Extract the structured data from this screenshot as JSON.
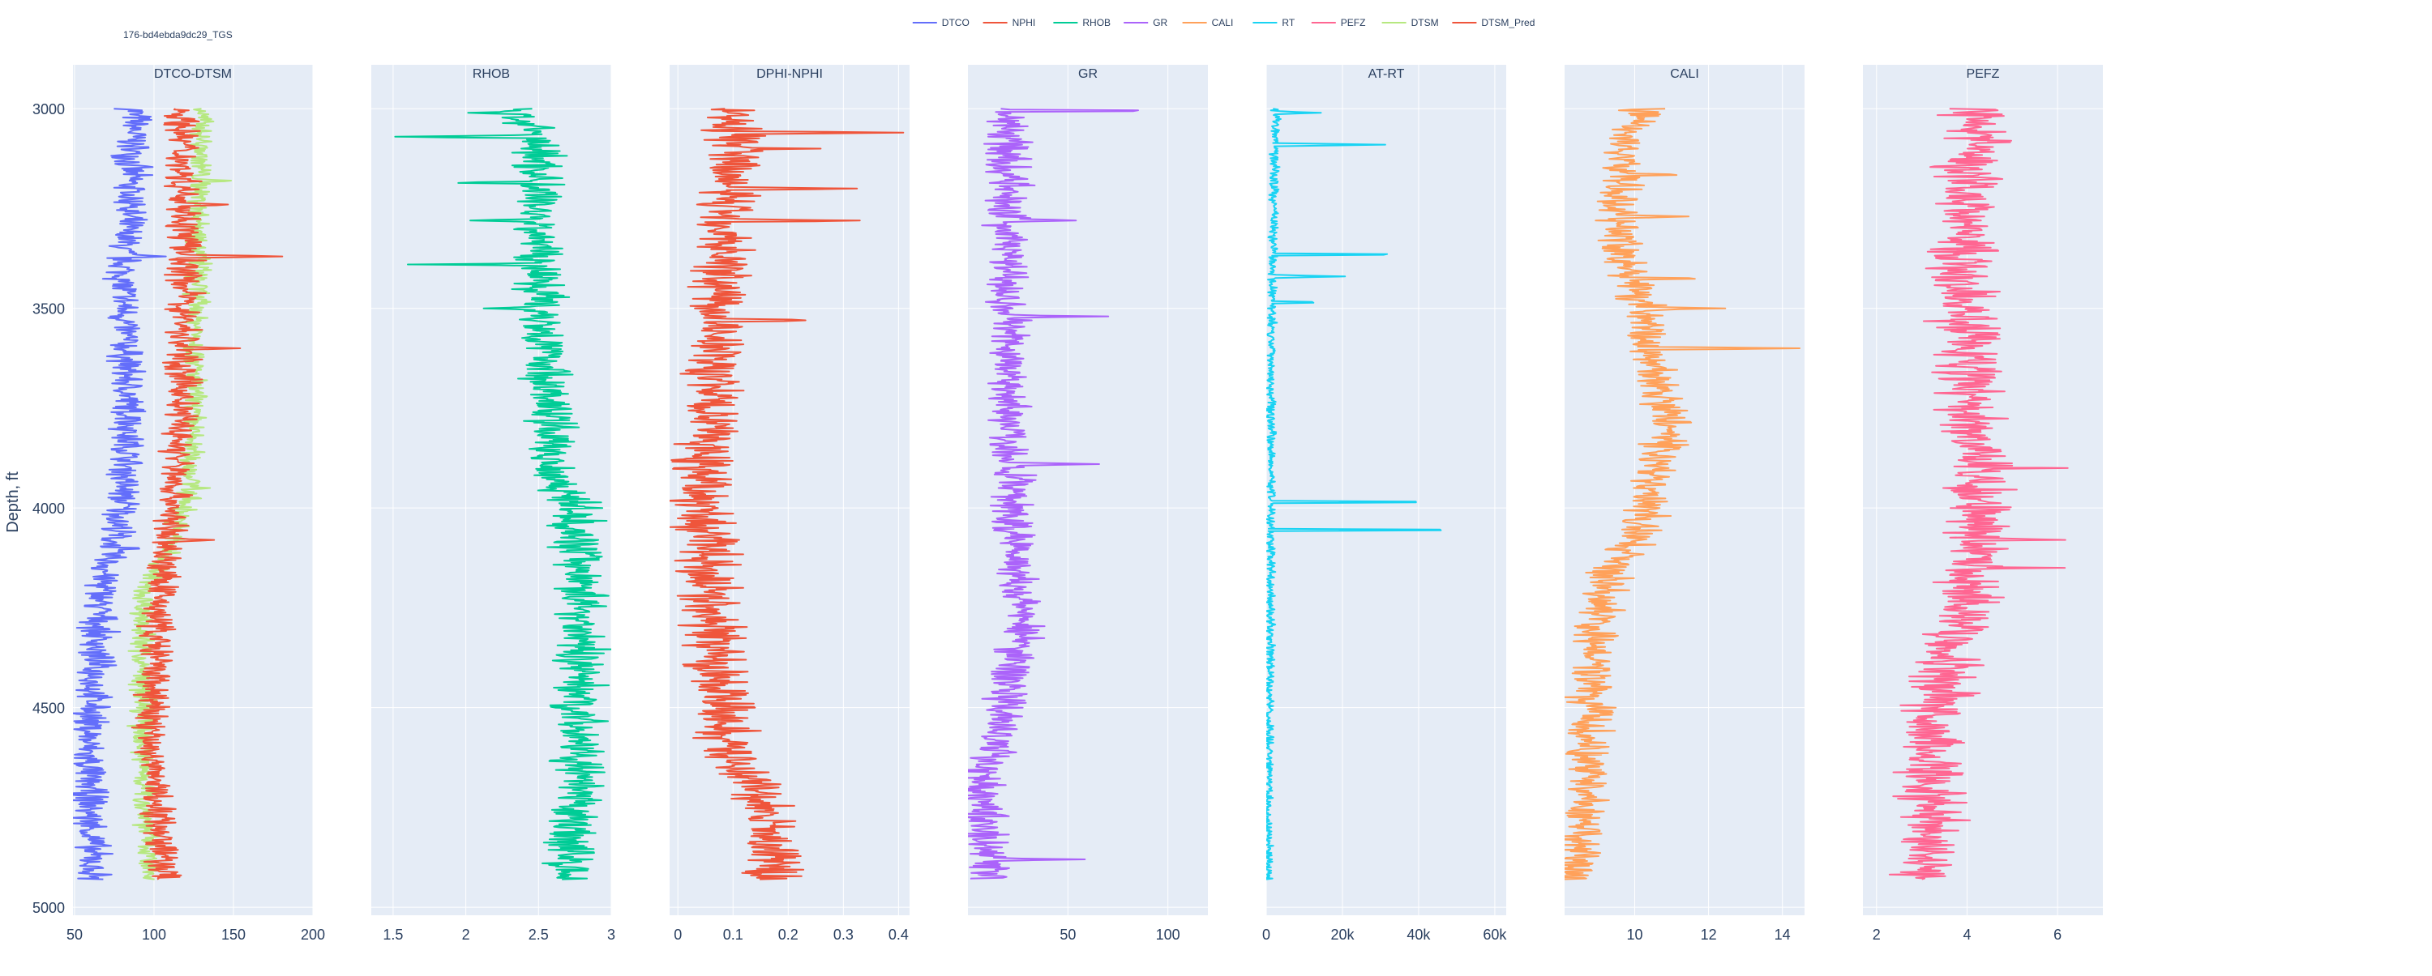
{
  "annotation": "176-bd4ebda9dc29_TGS",
  "y_axis_title": "Depth, ft",
  "colors": {
    "DTCO": "#636efa",
    "NPHI": "#EF553B",
    "RHOB": "#00cc96",
    "GR": "#ab63fa",
    "CALI": "#FFA15A",
    "RT": "#19d3f3",
    "PEFZ": "#FF6692",
    "DTSM": "#B6E880",
    "DTSM_Pred": "#EF553B",
    "plot_bg": "#E5ECF6",
    "grid": "#ffffff",
    "text": "#2a3f5f"
  },
  "legend": {
    "placement": "top-center",
    "items": [
      "DTCO",
      "NPHI",
      "RHOB",
      "GR",
      "CALI",
      "RT",
      "PEFZ",
      "DTSM",
      "DTSM_Pred"
    ]
  },
  "chart_data": {
    "type": "line",
    "depth_range": [
      3000,
      4930
    ],
    "ylim": [
      5020,
      2890
    ],
    "yticks": [
      3000,
      3500,
      4000,
      4500,
      5000
    ],
    "tracks": [
      {
        "title": "DTCO-DTSM",
        "xlim": [
          49,
          200
        ],
        "xticks": [
          50,
          100,
          150,
          200
        ],
        "xticklabels": [
          "50",
          "100",
          "150",
          "200"
        ],
        "series": [
          {
            "name": "DTCO",
            "profile": [
              [
                3000,
                88
              ],
              [
                3200,
                85
              ],
              [
                3400,
                80
              ],
              [
                3600,
                82
              ],
              [
                3800,
                84
              ],
              [
                4000,
                80
              ],
              [
                4050,
                77
              ],
              [
                4200,
                67
              ],
              [
                4400,
                63
              ],
              [
                4600,
                58
              ],
              [
                4800,
                60
              ],
              [
                4930,
                62
              ]
            ],
            "amp": 14,
            "spikes": [
              [
                3370,
                22
              ],
              [
                3240,
                14
              ],
              [
                3780,
                12
              ],
              [
                4100,
                10
              ]
            ]
          },
          {
            "name": "DTSM",
            "profile": [
              [
                3000,
                130
              ],
              [
                3400,
                128
              ],
              [
                3700,
                125
              ],
              [
                3950,
                123
              ],
              [
                4100,
                110
              ],
              [
                4200,
                94
              ],
              [
                4400,
                92
              ],
              [
                4600,
                93
              ],
              [
                4800,
                96
              ],
              [
                4930,
                97
              ]
            ],
            "amp": 10,
            "spikes": [
              [
                3180,
                14
              ],
              [
                3950,
                10
              ]
            ]
          },
          {
            "name": "DTSM_Pred",
            "profile": [
              [
                3000,
                118
              ],
              [
                3400,
                120
              ],
              [
                3700,
                118
              ],
              [
                4000,
                112
              ],
              [
                4100,
                108
              ],
              [
                4200,
                104
              ],
              [
                4600,
                97
              ],
              [
                4800,
                105
              ],
              [
                4930,
                106
              ]
            ],
            "amp": 14,
            "spikes": [
              [
                3370,
                65
              ],
              [
                3240,
                40
              ],
              [
                3600,
                30
              ],
              [
                4080,
                22
              ]
            ]
          }
        ]
      },
      {
        "title": "RHOB",
        "xlim": [
          1.35,
          3.0
        ],
        "xticks": [
          1.5,
          2,
          2.5,
          3
        ],
        "xticklabels": [
          "1.5",
          "2",
          "2.5",
          "3"
        ],
        "series": [
          {
            "name": "RHOB",
            "profile": [
              [
                3000,
                2.35
              ],
              [
                3100,
                2.5
              ],
              [
                3300,
                2.5
              ],
              [
                3600,
                2.55
              ],
              [
                3900,
                2.6
              ],
              [
                4000,
                2.75
              ],
              [
                4200,
                2.8
              ],
              [
                4600,
                2.78
              ],
              [
                4930,
                2.7
              ]
            ],
            "amp": 0.22,
            "spikes": [
              [
                3070,
                -0.95
              ],
              [
                3185,
                -0.55
              ],
              [
                3280,
                -0.45
              ],
              [
                3390,
                -0.75
              ],
              [
                3500,
                -0.35
              ],
              [
                3010,
                -0.3
              ]
            ]
          }
        ]
      },
      {
        "title": "DPHI-NPHI",
        "xlim": [
          -0.015,
          0.42
        ],
        "xticks": [
          0,
          0.1,
          0.2,
          0.3,
          0.4
        ],
        "xticklabels": [
          "0",
          "0.1",
          "0.2",
          "0.3",
          "0.4"
        ],
        "series": [
          {
            "name": "NPHI",
            "profile": [
              [
                3000,
                0.1
              ],
              [
                3300,
                0.09
              ],
              [
                3600,
                0.07
              ],
              [
                3900,
                0.05
              ],
              [
                4000,
                0.04
              ],
              [
                4200,
                0.06
              ],
              [
                4400,
                0.07
              ],
              [
                4600,
                0.09
              ],
              [
                4700,
                0.14
              ],
              [
                4850,
                0.17
              ],
              [
                4930,
                0.17
              ]
            ],
            "amp": 0.07,
            "spikes": [
              [
                3060,
                0.3
              ],
              [
                3200,
                0.2
              ],
              [
                3280,
                0.28
              ],
              [
                3530,
                0.16
              ],
              [
                3100,
                0.15
              ]
            ]
          }
        ]
      },
      {
        "title": "GR",
        "xlim": [
          0,
          120
        ],
        "xticks": [
          50,
          100
        ],
        "xticklabels": [
          "50",
          "100"
        ],
        "series": [
          {
            "name": "GR",
            "profile": [
              [
                3000,
                20
              ],
              [
                3500,
                20
              ],
              [
                4000,
                22
              ],
              [
                4300,
                28
              ],
              [
                4500,
                18
              ],
              [
                4700,
                8
              ],
              [
                4930,
                10
              ]
            ],
            "amp": 14,
            "spikes": [
              [
                3005,
                80
              ],
              [
                3520,
                55
              ],
              [
                3890,
                40
              ],
              [
                3280,
                30
              ],
              [
                4880,
                50
              ]
            ]
          }
        ]
      },
      {
        "title": "AT-RT",
        "xlim": [
          0,
          63000
        ],
        "xticks": [
          0,
          20000,
          40000,
          60000
        ],
        "xticklabels": [
          "0",
          "20k",
          "40k",
          "60k"
        ],
        "series": [
          {
            "name": "RT",
            "profile": [
              [
                3000,
                2500
              ],
              [
                3500,
                1500
              ],
              [
                4000,
                1200
              ],
              [
                4500,
                800
              ],
              [
                4930,
                400
              ]
            ],
            "amp": 1500,
            "spikes": [
              [
                4055,
                60000
              ],
              [
                3985,
                52000
              ],
              [
                3365,
                40000
              ],
              [
                3090,
                30000
              ],
              [
                3420,
                18000
              ],
              [
                3010,
                12000
              ],
              [
                3485,
                14000
              ]
            ]
          }
        ]
      },
      {
        "title": "CALI",
        "xlim": [
          8.1,
          14.6
        ],
        "xticks": [
          10,
          12,
          14
        ],
        "xticklabels": [
          "10",
          "12",
          "14"
        ],
        "series": [
          {
            "name": "CALI",
            "profile": [
              [
                3000,
                10.2
              ],
              [
                3100,
                9.7
              ],
              [
                3300,
                9.6
              ],
              [
                3600,
                10.4
              ],
              [
                3800,
                10.9
              ],
              [
                3950,
                10.4
              ],
              [
                4050,
                10.2
              ],
              [
                4150,
                9.4
              ],
              [
                4300,
                9.0
              ],
              [
                4450,
                8.8
              ],
              [
                4700,
                8.7
              ],
              [
                4930,
                8.3
              ]
            ],
            "amp": 0.75,
            "spikes": [
              [
                3600,
                3.6
              ],
              [
                3425,
                2.6
              ],
              [
                3270,
                2.3
              ],
              [
                3165,
                2.0
              ],
              [
                3500,
                2.3
              ],
              [
                3785,
                0.9
              ]
            ]
          }
        ]
      },
      {
        "title": "PEFZ",
        "xlim": [
          1.7,
          7.0
        ],
        "xticks": [
          2,
          4,
          6
        ],
        "xticklabels": [
          "2",
          "4",
          "6"
        ],
        "series": [
          {
            "name": "PEFZ",
            "profile": [
              [
                3000,
                4.2
              ],
              [
                3400,
                3.9
              ],
              [
                3800,
                4.1
              ],
              [
                4100,
                4.3
              ],
              [
                4300,
                3.8
              ],
              [
                4500,
                3.3
              ],
              [
                4930,
                3.1
              ]
            ],
            "amp": 0.95,
            "spikes": [
              [
                4150,
                1.8
              ],
              [
                3370,
                -1.2
              ],
              [
                3900,
                1.3
              ],
              [
                4080,
                1.5
              ]
            ]
          }
        ]
      }
    ]
  }
}
